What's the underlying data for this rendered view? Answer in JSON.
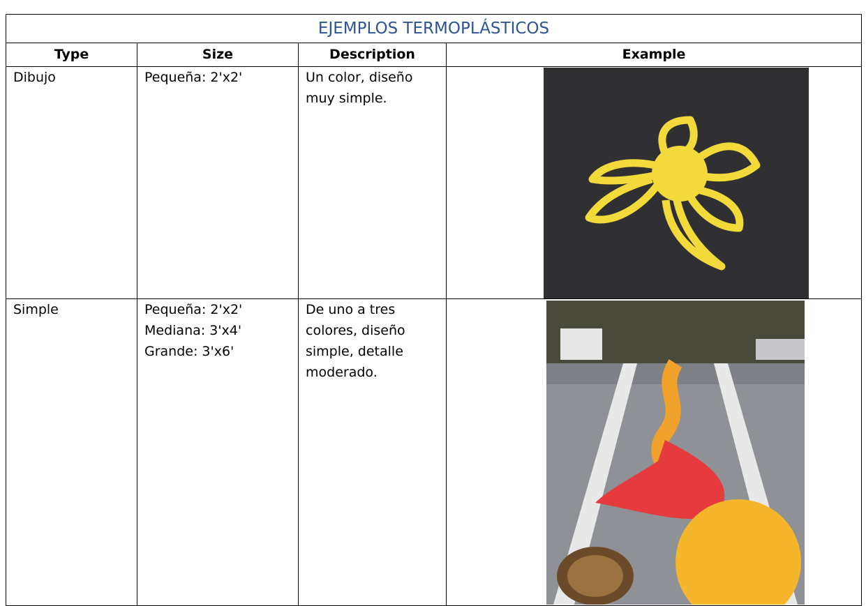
{
  "title": "EJEMPLOS TERMOPLÁSTICOS",
  "table": {
    "header": [
      "Type",
      "Size",
      "Description",
      "Example"
    ],
    "rows": [
      {
        "type": "Dibujo",
        "size": [
          "Pequeña: 2'x2'"
        ],
        "description": [
          "Un color, diseño",
          "muy simple."
        ]
      },
      {
        "type": "Simple",
        "size": [
          "Pequeña: 2'x2'",
          "Mediana: 3'x4'",
          "Grande: 3'x6'"
        ],
        "description": [
          "De uno a tres",
          "colores, diseño",
          "simple, detalle",
          "moderado."
        ]
      }
    ]
  }
}
